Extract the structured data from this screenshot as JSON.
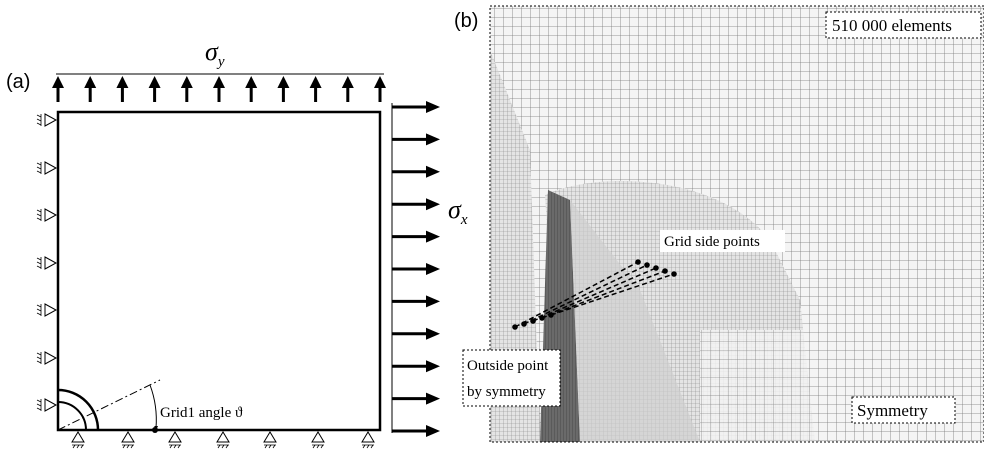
{
  "panel_a": {
    "label": "(a)",
    "sigma_y": {
      "symbol": "σ",
      "subscript": "y"
    },
    "sigma_x": {
      "symbol": "σ",
      "subscript": "x"
    },
    "angle_label": "Grid1 angle ϑ"
  },
  "panel_b": {
    "label": "(b)",
    "elements": "510 000 elements",
    "grid_side_points": "Grid side points",
    "outside_point": [
      "Outside point",
      "by symmetry"
    ],
    "symmetry": "Symmetry"
  }
}
